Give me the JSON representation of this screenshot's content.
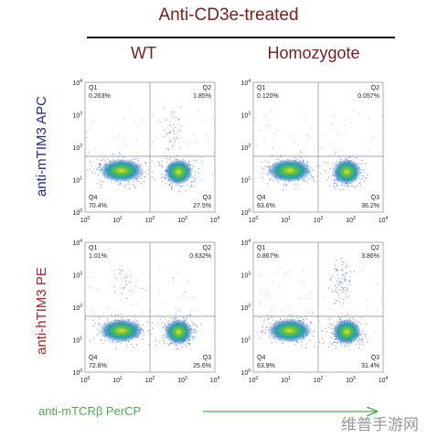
{
  "header": {
    "title": "Anti-CD3e-treated",
    "columns": [
      "WT",
      "Homozygote"
    ]
  },
  "rows": [
    "anti-mTIM3 APC",
    "anti-hTIM3 PE"
  ],
  "panels": [
    [
      {
        "quadrants": [
          {
            "name": "Q1",
            "percent": "0.263%"
          },
          {
            "name": "Q2",
            "percent": "1.85%"
          },
          {
            "name": "Q3",
            "percent": "27.5%"
          },
          {
            "name": "Q4",
            "percent": "70.4%"
          }
        ]
      },
      {
        "quadrants": [
          {
            "name": "Q1",
            "percent": "0.120%"
          },
          {
            "name": "Q2",
            "percent": "0.057%"
          },
          {
            "name": "Q3",
            "percent": "36.2%"
          },
          {
            "name": "Q4",
            "percent": "63.6%"
          }
        ]
      }
    ],
    [
      {
        "quadrants": [
          {
            "name": "Q1",
            "percent": "1.01%"
          },
          {
            "name": "Q2",
            "percent": "0.632%"
          },
          {
            "name": "Q3",
            "percent": "25.6%"
          },
          {
            "name": "Q4",
            "percent": "72.8%"
          }
        ]
      },
      {
        "quadrants": [
          {
            "name": "Q1",
            "percent": "0.867%"
          },
          {
            "name": "Q2",
            "percent": "3.86%"
          },
          {
            "name": "Q3",
            "percent": "31.4%"
          },
          {
            "name": "Q4",
            "percent": "63.9%"
          }
        ]
      }
    ]
  ],
  "axis_ticks": {
    "base": "10",
    "exponents": [
      "0",
      "1",
      "2",
      "3",
      "4"
    ]
  },
  "x_axis_label": "anti-mTCRβ PerCP",
  "watermark": "维普手游网"
}
